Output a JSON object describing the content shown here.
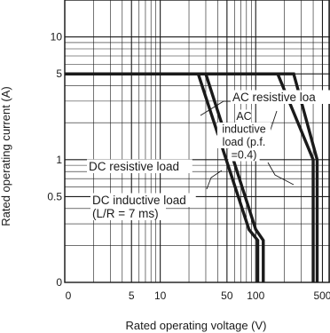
{
  "chart_data": {
    "type": "line",
    "x_scale": "log",
    "y_scale": "log",
    "xlabel": "Rated operating voltage (V)",
    "ylabel": "Rated operating current (A)",
    "xlim": [
      1,
      600
    ],
    "ylim": [
      0.1,
      20
    ],
    "grid": true,
    "x_ticks": [
      {
        "label": "0",
        "value": 1
      },
      {
        "label": "5",
        "value": 5
      },
      {
        "label": "10",
        "value": 10
      },
      {
        "label": "50",
        "value": 50
      },
      {
        "label": "100",
        "value": 100
      },
      {
        "label": "500",
        "value": 500
      }
    ],
    "y_ticks": [
      {
        "label": "0",
        "value": 0.1
      },
      {
        "label": "0.5",
        "value": 0.5
      },
      {
        "label": "1",
        "value": 1
      },
      {
        "label": "5",
        "value": 5
      },
      {
        "label": "10",
        "value": 10
      }
    ],
    "series": [
      {
        "name": "AC resistive load",
        "x": [
          1,
          250,
          440,
          440
        ],
        "y": [
          5,
          5,
          1,
          0.1
        ]
      },
      {
        "name": "AC inductive load (p.f. =0.4)",
        "x": [
          1,
          170,
          400,
          400
        ],
        "y": [
          5,
          5,
          1,
          0.1
        ]
      },
      {
        "name": "DC resistive load",
        "x": [
          1,
          30,
          100,
          120,
          120
        ],
        "y": [
          5,
          5,
          0.27,
          0.22,
          0.1
        ]
      },
      {
        "name": "DC inductive load (L/R = 7 ms)",
        "x": [
          1,
          25,
          85,
          105,
          105
        ],
        "y": [
          5,
          5,
          0.27,
          0.22,
          0.1
        ]
      }
    ],
    "annotations": [
      {
        "name": "ac-resistive-label",
        "lines": [
          "AC resistive loa"
        ]
      },
      {
        "name": "ac-inductive-label",
        "lines": [
          "AC",
          "inductive",
          "load (p.f.",
          "=0.4)"
        ]
      },
      {
        "name": "dc-resistive-label",
        "lines": [
          "DC resistive load"
        ]
      },
      {
        "name": "dc-inductive-label",
        "lines": [
          "DC inductive load",
          "(L/R = 7 ms)"
        ]
      }
    ]
  }
}
